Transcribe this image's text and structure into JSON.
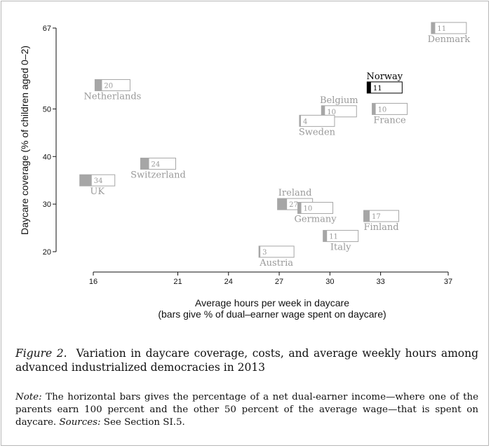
{
  "chart_data": {
    "type": "scatter",
    "title": "",
    "xlabel": "Average hours per week in daycare",
    "xlabel_sub": "(bars give % of dual–earner wage spent on daycare)",
    "ylabel": "Daycare coverage (% of children aged 0–2)",
    "xlim": [
      16,
      37
    ],
    "ylim": [
      19,
      67
    ],
    "xticks": [
      16,
      21,
      24,
      27,
      30,
      33,
      37
    ],
    "yticks": [
      20,
      30,
      40,
      50,
      67
    ],
    "bar_scale_max": 100,
    "highlight_color": "#000000",
    "muted_color": "#a6a6a6",
    "points": [
      {
        "name": "Denmark",
        "x": 36,
        "y": 67,
        "cost": 11
      },
      {
        "name": "Norway",
        "x": 32.2,
        "y": 54.5,
        "cost": 11,
        "highlight": true
      },
      {
        "name": "Netherlands",
        "x": 16.1,
        "y": 55,
        "cost": 20
      },
      {
        "name": "Belgium",
        "x": 29.5,
        "y": 49.5,
        "cost": 10
      },
      {
        "name": "France",
        "x": 32.5,
        "y": 50,
        "cost": 10
      },
      {
        "name": "Sweden",
        "x": 28.2,
        "y": 47.5,
        "cost": 4
      },
      {
        "name": "Switzerland",
        "x": 18.8,
        "y": 38.5,
        "cost": 24
      },
      {
        "name": "UK",
        "x": 15.2,
        "y": 35,
        "cost": 34
      },
      {
        "name": "Ireland",
        "x": 26.9,
        "y": 30,
        "cost": 27
      },
      {
        "name": "Germany",
        "x": 28.1,
        "y": 29.2,
        "cost": 10
      },
      {
        "name": "Finland",
        "x": 32.0,
        "y": 27.5,
        "cost": 17
      },
      {
        "name": "Italy",
        "x": 29.6,
        "y": 23.3,
        "cost": 11
      },
      {
        "name": "Austria",
        "x": 25.8,
        "y": 20,
        "cost": 3
      }
    ]
  },
  "caption": {
    "label": "Figure 2.",
    "text": "Variation in daycare coverage, costs, and average weekly hours among advanced industrialized democracies in 2013"
  },
  "note": {
    "label": "Note:",
    "text": "The horizontal bars gives the percentage of a net dual-earner income—where one of the parents earn 100 percent and the other 50 percent of the average wage—that is spent on daycare.",
    "sources_label": "Sources:",
    "sources_text": "See Section SI.5."
  }
}
